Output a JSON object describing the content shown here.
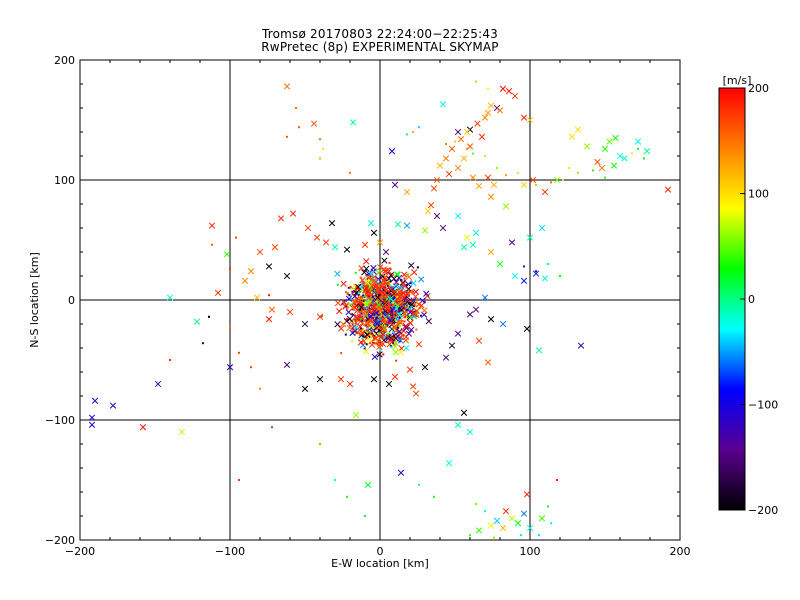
{
  "chart_data": {
    "type": "scatter",
    "title": "Tromsø 20170803 22:24:00−22:25:43",
    "subtitle": "RwPretec (8p) EXPERIMENTAL SKYMAP",
    "xlabel": "E-W location [km]",
    "ylabel": "N-S location [km]",
    "xlim": [
      -200,
      200
    ],
    "ylim": [
      -200,
      200
    ],
    "xticks": [
      "−200",
      "−100",
      "0",
      "100",
      "200"
    ],
    "yticks": [
      "200",
      "100",
      "0",
      "−100",
      "−200"
    ],
    "grid": true,
    "colorbar": {
      "label": "[m/s]",
      "range": [
        -200,
        200
      ],
      "ticks": [
        "200",
        "100",
        "0",
        "−100",
        "−200"
      ],
      "colormap": [
        "#000000",
        "#5a0090",
        "#0000ff",
        "#00ffff",
        "#00ff00",
        "#ffff00",
        "#ff8000",
        "#ff0000"
      ]
    },
    "marker_legend": {
      "cross": "x marker",
      "dot": "small dot"
    },
    "series": [
      {
        "marker": "x",
        "points": [
          [
            -62,
            178,
            150
          ],
          [
            -44,
            147,
            160
          ],
          [
            -18,
            148,
            -5
          ],
          [
            42,
            163,
            -30
          ],
          [
            52,
            140,
            -160
          ],
          [
            60,
            142,
            -200
          ],
          [
            78,
            160,
            -150
          ],
          [
            86,
            174,
            190
          ],
          [
            82,
            176,
            195
          ],
          [
            90,
            170,
            175
          ],
          [
            96,
            152,
            185
          ],
          [
            100,
            150,
            110
          ],
          [
            65,
            147,
            175
          ],
          [
            70,
            152,
            140
          ],
          [
            72,
            156,
            130
          ],
          [
            74,
            162,
            120
          ],
          [
            80,
            158,
            150
          ],
          [
            68,
            136,
            180
          ],
          [
            58,
            140,
            110
          ],
          [
            54,
            134,
            150
          ],
          [
            60,
            128,
            160
          ],
          [
            48,
            126,
            160
          ],
          [
            40,
            112,
            120
          ],
          [
            44,
            118,
            150
          ],
          [
            56,
            118,
            120
          ],
          [
            52,
            110,
            140
          ],
          [
            46,
            105,
            175
          ],
          [
            38,
            100,
            160
          ],
          [
            36,
            93,
            170
          ],
          [
            62,
            102,
            140
          ],
          [
            66,
            95,
            130
          ],
          [
            72,
            102,
            175
          ],
          [
            76,
            96,
            120
          ],
          [
            74,
            86,
            140
          ],
          [
            84,
            78,
            60
          ],
          [
            96,
            96,
            105
          ],
          [
            102,
            100,
            170
          ],
          [
            110,
            90,
            180
          ],
          [
            118,
            100,
            60
          ],
          [
            128,
            136,
            100
          ],
          [
            132,
            142,
            100
          ],
          [
            138,
            128,
            60
          ],
          [
            150,
            126,
            40
          ],
          [
            153,
            132,
            50
          ],
          [
            157,
            135,
            30
          ],
          [
            160,
            120,
            -20
          ],
          [
            163,
            118,
            -10
          ],
          [
            156,
            112,
            30
          ],
          [
            148,
            110,
            150
          ],
          [
            145,
            115,
            170
          ],
          [
            172,
            132,
            -30
          ],
          [
            178,
            124,
            0
          ],
          [
            192,
            92,
            190
          ],
          [
            8,
            124,
            -100
          ],
          [
            10,
            96,
            -140
          ],
          [
            18,
            90,
            130
          ],
          [
            32,
            74,
            110
          ],
          [
            30,
            58,
            60
          ],
          [
            18,
            62,
            -50
          ],
          [
            12,
            63,
            0
          ],
          [
            34,
            79,
            170
          ],
          [
            52,
            70,
            -30
          ],
          [
            42,
            60,
            -150
          ],
          [
            38,
            70,
            -160
          ],
          [
            56,
            44,
            -10
          ],
          [
            62,
            46,
            -10
          ],
          [
            58,
            52,
            80
          ],
          [
            64,
            56,
            -20
          ],
          [
            74,
            40,
            130
          ],
          [
            80,
            30,
            30
          ],
          [
            88,
            48,
            -140
          ],
          [
            100,
            52,
            -10
          ],
          [
            108,
            60,
            -40
          ],
          [
            96,
            16,
            -80
          ],
          [
            104,
            22,
            -80
          ],
          [
            110,
            18,
            -20
          ],
          [
            90,
            20,
            -30
          ],
          [
            -112,
            62,
            185
          ],
          [
            -102,
            38,
            40
          ],
          [
            -108,
            6,
            175
          ],
          [
            -122,
            -18,
            0
          ],
          [
            -140,
            2,
            -10
          ],
          [
            -66,
            68,
            180
          ],
          [
            -58,
            72,
            185
          ],
          [
            -48,
            60,
            175
          ],
          [
            -42,
            52,
            170
          ],
          [
            -36,
            48,
            175
          ],
          [
            -30,
            44,
            -10
          ],
          [
            -22,
            42,
            -200
          ],
          [
            -32,
            64,
            -200
          ],
          [
            -70,
            44,
            170
          ],
          [
            -80,
            40,
            170
          ],
          [
            -86,
            24,
            140
          ],
          [
            -74,
            28,
            -200
          ],
          [
            -62,
            20,
            -200
          ],
          [
            -90,
            16,
            140
          ],
          [
            -82,
            2,
            120
          ],
          [
            -72,
            -8,
            160
          ],
          [
            -74,
            -16,
            190
          ],
          [
            -60,
            -10,
            175
          ],
          [
            -50,
            -20,
            -170
          ],
          [
            -40,
            -14,
            175
          ],
          [
            -10,
            46,
            175
          ],
          [
            -6,
            64,
            -20
          ],
          [
            0,
            48,
            130
          ],
          [
            4,
            40,
            -160
          ],
          [
            -4,
            56,
            -200
          ],
          [
            60,
            -12,
            -160
          ],
          [
            64,
            -8,
            -150
          ],
          [
            70,
            2,
            -60
          ],
          [
            74,
            -16,
            -200
          ],
          [
            82,
            -20,
            -60
          ],
          [
            98,
            -24,
            -200
          ],
          [
            106,
            -42,
            -5
          ],
          [
            66,
            -34,
            170
          ],
          [
            72,
            -52,
            160
          ],
          [
            52,
            -28,
            -140
          ],
          [
            48,
            -38,
            -180
          ],
          [
            44,
            -48,
            -150
          ],
          [
            30,
            -56,
            -180
          ],
          [
            20,
            -58,
            180
          ],
          [
            10,
            -64,
            180
          ],
          [
            -4,
            -66,
            -200
          ],
          [
            -20,
            -70,
            185
          ],
          [
            -40,
            -66,
            -180
          ],
          [
            -50,
            -74,
            -200
          ],
          [
            -62,
            -54,
            -150
          ],
          [
            134,
            -38,
            -120
          ],
          [
            -26,
            -66,
            175
          ],
          [
            6,
            -70,
            -200
          ],
          [
            22,
            -72,
            170
          ],
          [
            24,
            -78,
            170
          ],
          [
            -148,
            -70,
            -120
          ],
          [
            -178,
            -88,
            -110
          ],
          [
            -190,
            -84,
            -110
          ],
          [
            -192,
            -98,
            -100
          ],
          [
            -192,
            -104,
            -110
          ],
          [
            -158,
            -106,
            190
          ],
          [
            -132,
            -110,
            70
          ],
          [
            -100,
            -56,
            -120
          ],
          [
            -16,
            -96,
            60
          ],
          [
            56,
            -94,
            -200
          ],
          [
            52,
            -104,
            -10
          ],
          [
            60,
            -110,
            -20
          ],
          [
            46,
            -136,
            -20
          ],
          [
            14,
            -144,
            -110
          ],
          [
            -8,
            -154,
            20
          ],
          [
            84,
            -176,
            180
          ],
          [
            98,
            -162,
            185
          ],
          [
            78,
            -184,
            -40
          ],
          [
            82,
            -190,
            120
          ],
          [
            92,
            -186,
            20
          ],
          [
            100,
            -190,
            -20
          ],
          [
            108,
            -182,
            40
          ],
          [
            88,
            -182,
            70
          ],
          [
            74,
            -188,
            80
          ],
          [
            66,
            -192,
            40
          ],
          [
            96,
            -178,
            -60
          ]
        ]
      },
      {
        "marker": "dot",
        "points": [
          [
            -56,
            160,
            150
          ],
          [
            -54,
            144,
            160
          ],
          [
            -62,
            136,
            160
          ],
          [
            -40,
            134,
            150
          ],
          [
            -38,
            126,
            100
          ],
          [
            -40,
            118,
            120
          ],
          [
            -20,
            106,
            150
          ],
          [
            18,
            138,
            -10
          ],
          [
            22,
            140,
            120
          ],
          [
            26,
            144,
            -40
          ],
          [
            64,
            182,
            60
          ],
          [
            72,
            176,
            90
          ],
          [
            44,
            130,
            140
          ],
          [
            50,
            132,
            110
          ],
          [
            58,
            126,
            140
          ],
          [
            62,
            122,
            50
          ],
          [
            70,
            120,
            100
          ],
          [
            78,
            110,
            60
          ],
          [
            84,
            104,
            130
          ],
          [
            92,
            106,
            100
          ],
          [
            104,
            96,
            120
          ],
          [
            114,
            98,
            150
          ],
          [
            122,
            100,
            100
          ],
          [
            126,
            110,
            80
          ],
          [
            132,
            106,
            60
          ],
          [
            142,
            108,
            40
          ],
          [
            150,
            102,
            40
          ],
          [
            168,
            122,
            80
          ],
          [
            172,
            126,
            20
          ],
          [
            176,
            118,
            30
          ],
          [
            96,
            28,
            -130
          ],
          [
            104,
            24,
            -130
          ],
          [
            112,
            30,
            -10
          ],
          [
            120,
            20,
            30
          ],
          [
            -114,
            -14,
            -200
          ],
          [
            -118,
            -36,
            -170
          ],
          [
            -100,
            -22,
            150
          ],
          [
            -94,
            -44,
            170
          ],
          [
            -86,
            -56,
            170
          ],
          [
            -80,
            -74,
            140
          ],
          [
            -72,
            -106,
            180
          ],
          [
            -140,
            -50,
            175
          ],
          [
            -40,
            -120,
            130
          ],
          [
            -30,
            -150,
            -30
          ],
          [
            -22,
            -164,
            30
          ],
          [
            -10,
            -180,
            10
          ],
          [
            26,
            -154,
            -5
          ],
          [
            36,
            -164,
            20
          ],
          [
            64,
            -170,
            50
          ],
          [
            70,
            -176,
            -20
          ],
          [
            112,
            -172,
            20
          ],
          [
            114,
            -186,
            -20
          ],
          [
            118,
            -150,
            190
          ],
          [
            -94,
            -150,
            175
          ],
          [
            60,
            -196,
            40
          ],
          [
            76,
            -198,
            60
          ],
          [
            94,
            -196,
            10
          ],
          [
            106,
            -196,
            -40
          ],
          [
            -74,
            4,
            190
          ],
          [
            -100,
            26,
            180
          ],
          [
            -112,
            46,
            160
          ],
          [
            -96,
            52,
            175
          ]
        ]
      }
    ]
  }
}
